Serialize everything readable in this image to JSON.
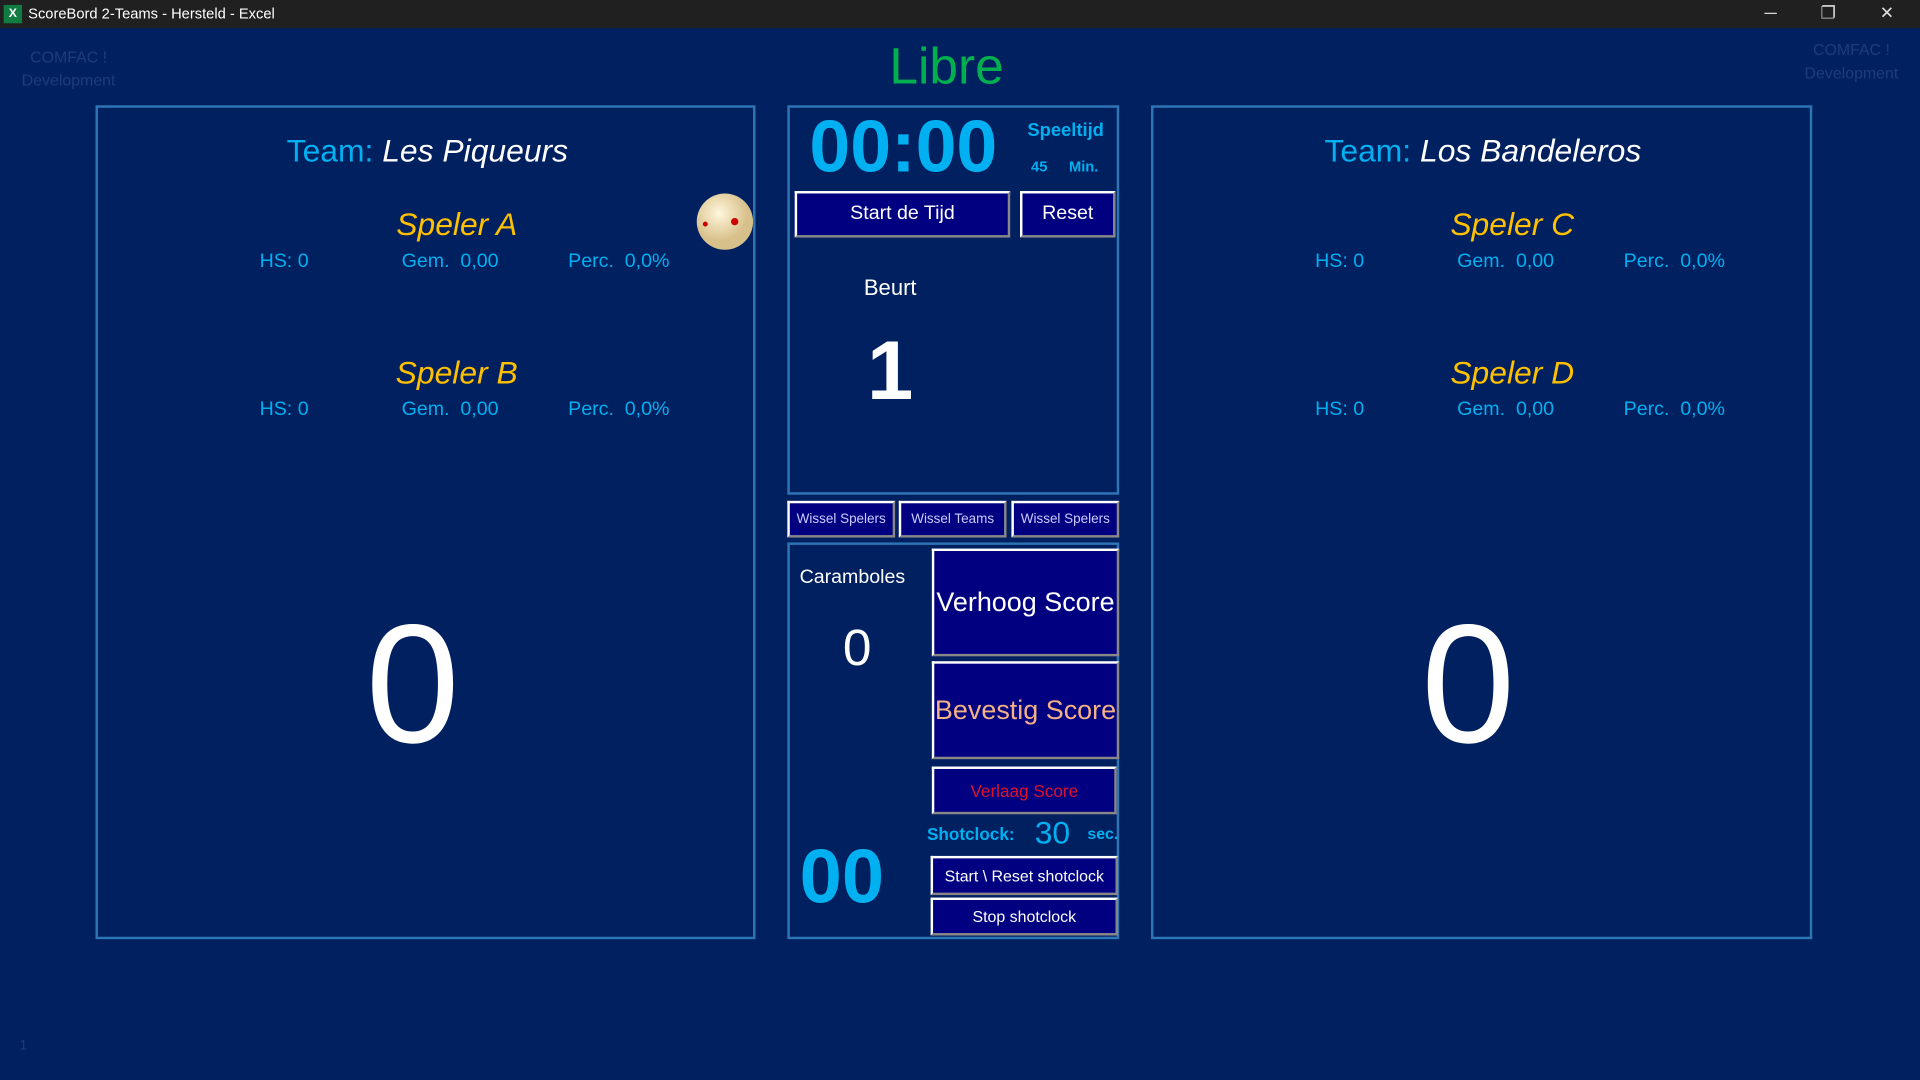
{
  "window": {
    "title": "ScoreBord 2-Teams  -  Hersteld - Excel",
    "app_icon": "X",
    "minimize": "─",
    "restore": "❐",
    "close": "✕"
  },
  "watermark": {
    "line1": "COMFAC !",
    "line2": "Development"
  },
  "game_type": "Libre",
  "team_label": "Team:",
  "left_team": {
    "name": "Les Piqueurs",
    "score": "0",
    "players": [
      {
        "name": "Speler A",
        "hs": "HS: 0",
        "gem_label": "Gem.",
        "gem": "0,00",
        "perc_label": "Perc.",
        "perc": "0,0%"
      },
      {
        "name": "Speler B",
        "hs": "HS: 0",
        "gem_label": "Gem.",
        "gem": "0,00",
        "perc_label": "Perc.",
        "perc": "0,0%"
      }
    ]
  },
  "right_team": {
    "name": "Los Bandeleros",
    "score": "0",
    "players": [
      {
        "name": "Speler C",
        "hs": "HS: 0",
        "gem_label": "Gem.",
        "gem": "0,00",
        "perc_label": "Perc.",
        "perc": "0,0%"
      },
      {
        "name": "Speler D",
        "hs": "HS: 0",
        "gem_label": "Gem.",
        "gem": "0,00",
        "perc_label": "Perc.",
        "perc": "0,0%"
      }
    ]
  },
  "timer": {
    "time": "00:00",
    "speeltijd_label": "Speeltijd",
    "minutes": "45",
    "min_label": "Min.",
    "start": "Start de Tijd",
    "reset": "Reset"
  },
  "beurt": {
    "label": "Beurt",
    "value": "1"
  },
  "swap": {
    "left": "Wissel Spelers",
    "teams": "Wissel Teams",
    "right": "Wissel Spelers"
  },
  "caramboles": {
    "label": "Caramboles",
    "value": "0"
  },
  "score_buttons": {
    "increase": "Verhoog Score",
    "confirm": "Bevestig Score",
    "decrease": "Verlaag Score"
  },
  "shotclock": {
    "label": "Shotclock:",
    "seconds": "30",
    "unit": "sec.",
    "remaining": "00",
    "start_reset": "Start \\ Reset shotclock",
    "stop": "Stop shotclock"
  },
  "row_number": "1",
  "colors": {
    "background": "#00205f",
    "accent": "#00b0f0",
    "player": "#ffc000",
    "title": "#00b050",
    "button": "#000080"
  }
}
